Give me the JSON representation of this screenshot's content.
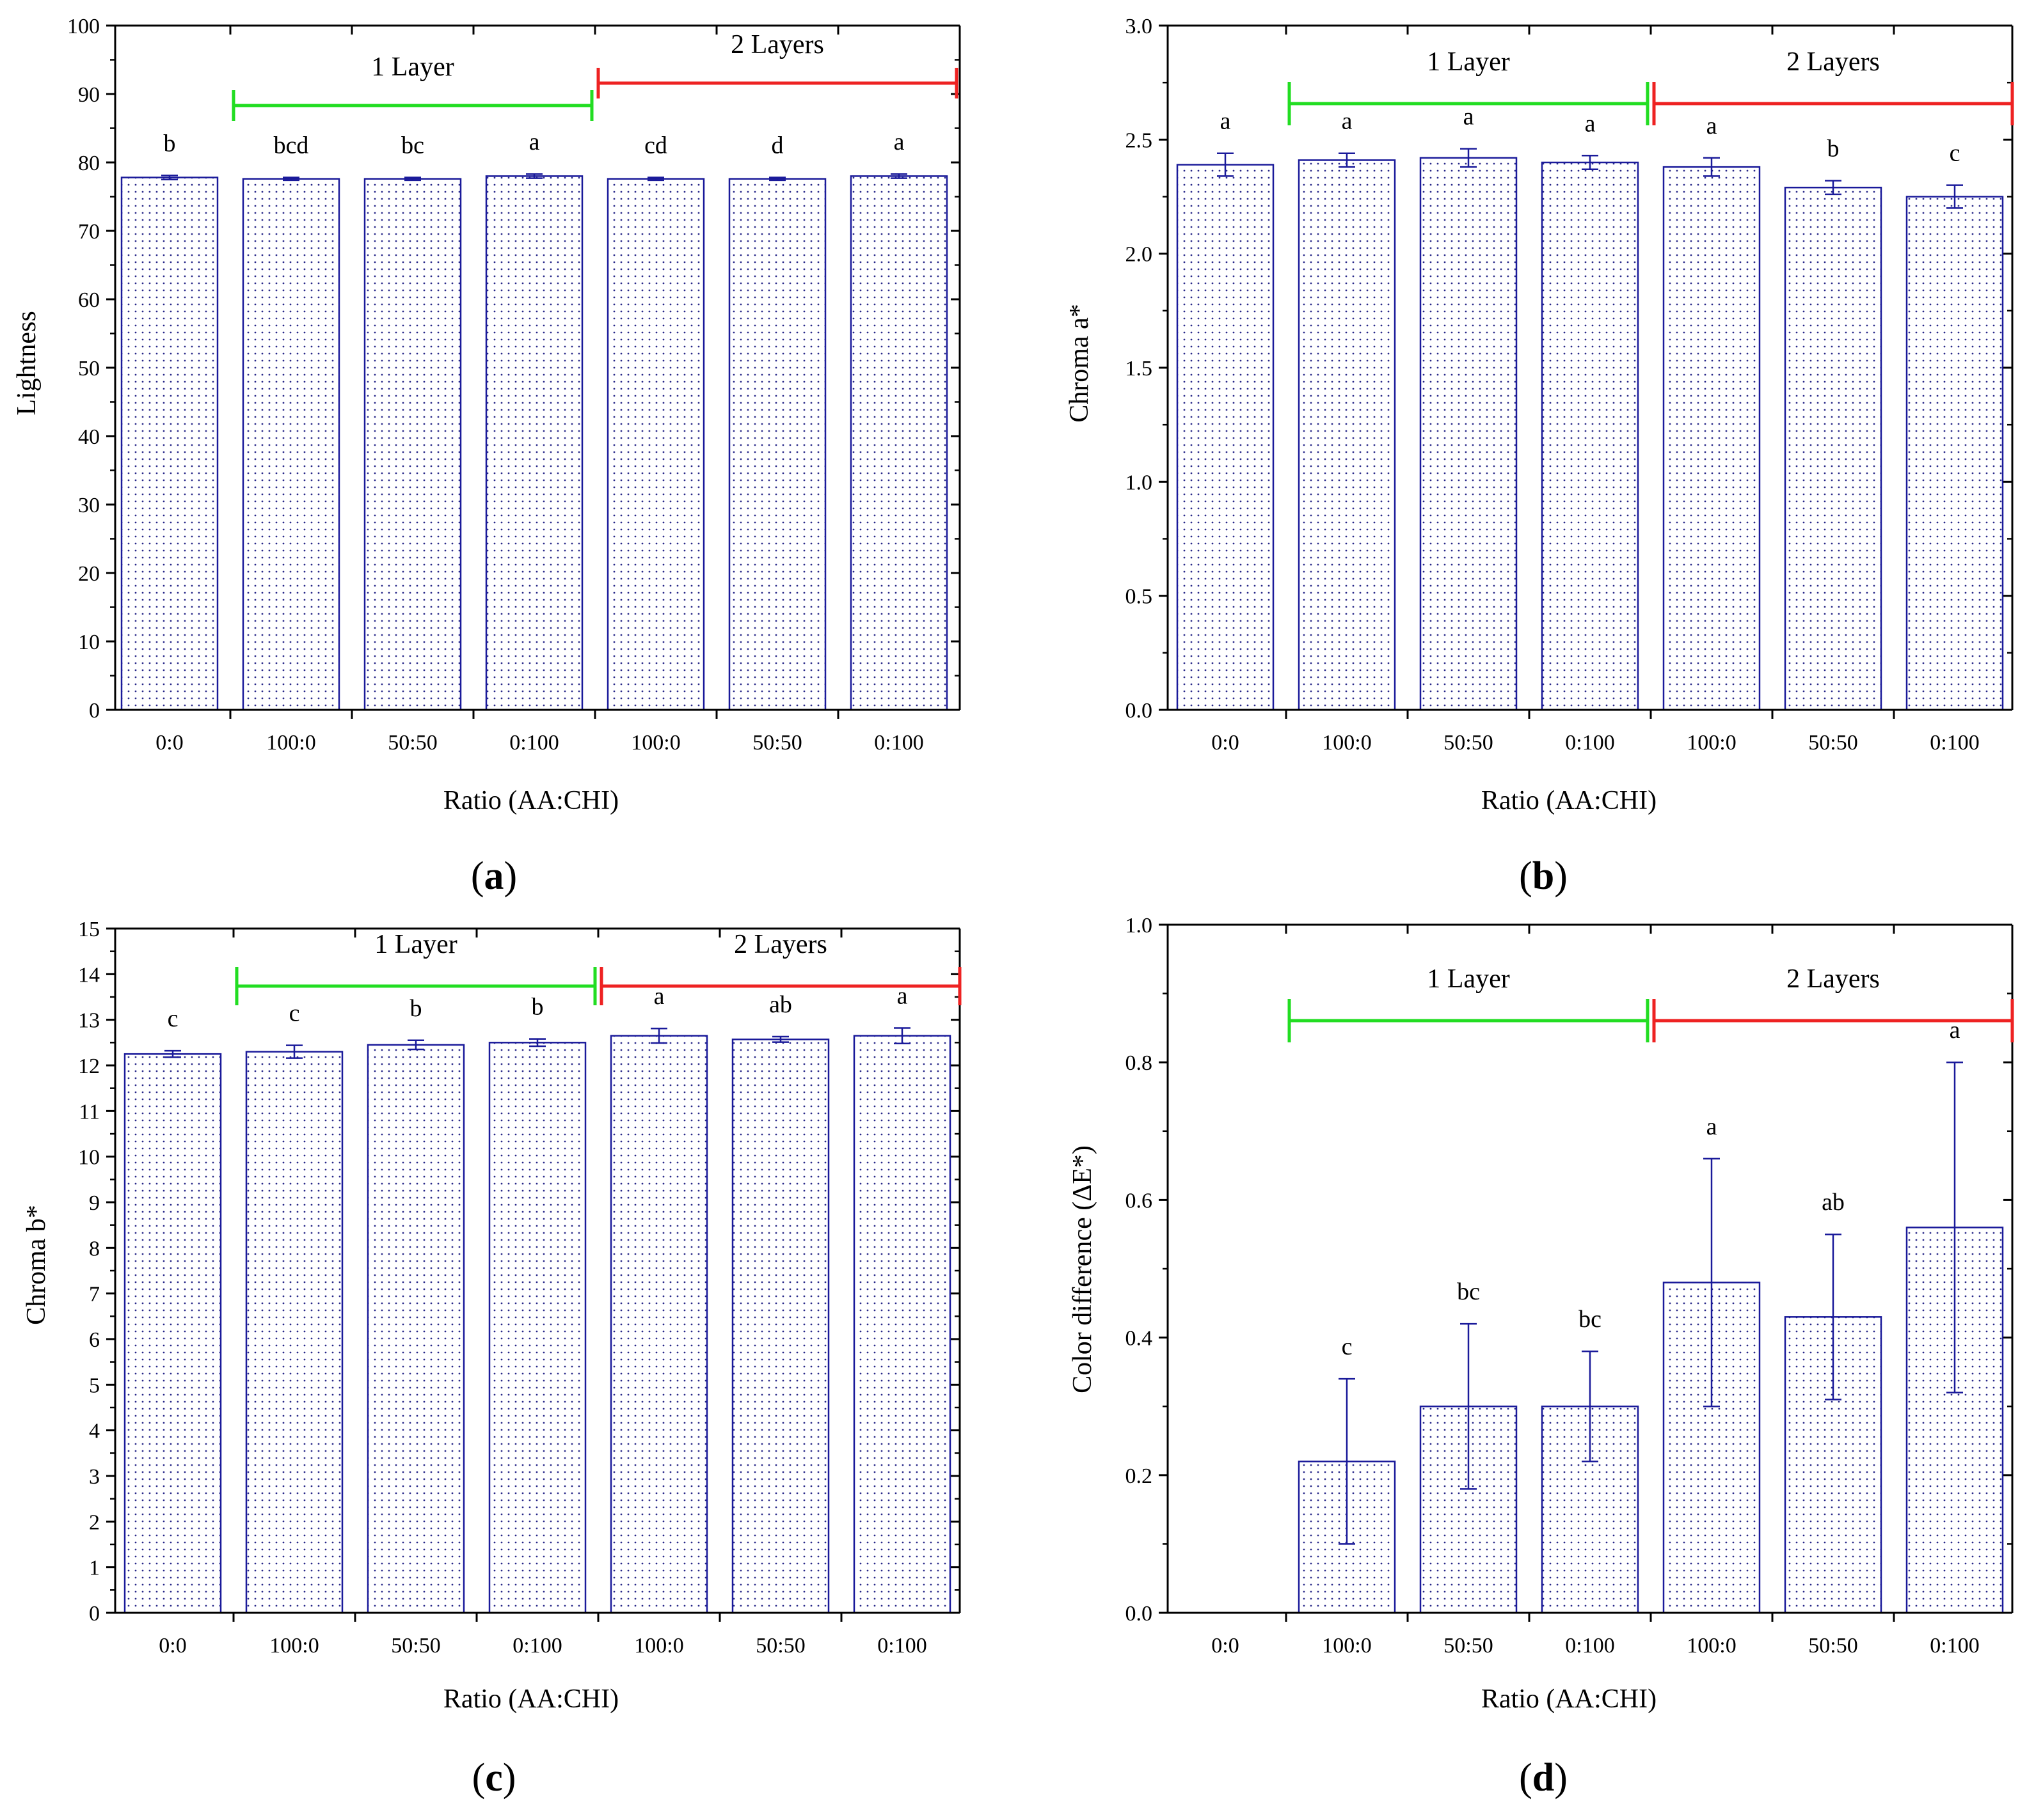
{
  "chart_data": [
    {
      "type": "bar",
      "panel": "a",
      "ylabel": "Lightness",
      "xlabel": "Ratio (AA:CHI)",
      "categories": [
        "0:0",
        "100:0",
        "50:50",
        "0:100",
        "100:0",
        "50:50",
        "0:100"
      ],
      "values": [
        77.8,
        77.6,
        77.6,
        78.0,
        77.6,
        77.6,
        78.0
      ],
      "errors": [
        0.3,
        0.2,
        0.2,
        0.3,
        0.2,
        0.2,
        0.3
      ],
      "letters": [
        "b",
        "bcd",
        "bc",
        "a",
        "cd",
        "d",
        "a"
      ],
      "ylim": [
        0,
        100
      ],
      "yticks": [
        0,
        10,
        20,
        30,
        40,
        50,
        60,
        70,
        80,
        90,
        100
      ],
      "yticklabels": [
        "0",
        "10",
        "20",
        "30",
        "40",
        "50",
        "60",
        "70",
        "80",
        "90",
        "100"
      ],
      "groups": [
        {
          "label": "1 Layer",
          "from": 1,
          "to": 3,
          "color": "#22dd22"
        },
        {
          "label": "2 Layers",
          "from": 4,
          "to": 6,
          "color": "#ee2222"
        }
      ]
    },
    {
      "type": "bar",
      "panel": "b",
      "ylabel": "Chroma a*",
      "xlabel": "Ratio (AA:CHI)",
      "categories": [
        "0:0",
        "100:0",
        "50:50",
        "0:100",
        "100:0",
        "50:50",
        "0:100"
      ],
      "values": [
        2.39,
        2.41,
        2.42,
        2.4,
        2.38,
        2.29,
        2.25
      ],
      "errors": [
        0.05,
        0.03,
        0.04,
        0.03,
        0.04,
        0.03,
        0.05
      ],
      "letters": [
        "a",
        "a",
        "a",
        "a",
        "a",
        "b",
        "c"
      ],
      "ylim": [
        0,
        3.0
      ],
      "yticks": [
        0,
        0.5,
        1.0,
        1.5,
        2.0,
        2.5,
        3.0
      ],
      "yticklabels": [
        "0.0",
        "0.5",
        "1.0",
        "1.5",
        "2.0",
        "2.5",
        "3.0"
      ],
      "groups": [
        {
          "label": "1 Layer",
          "from": 1,
          "to": 3,
          "color": "#22dd22"
        },
        {
          "label": "2 Layers",
          "from": 4,
          "to": 6,
          "color": "#ee2222"
        }
      ]
    },
    {
      "type": "bar",
      "panel": "c",
      "ylabel": "Chroma b*",
      "xlabel": "Ratio (AA:CHI)",
      "categories": [
        "0:0",
        "100:0",
        "50:50",
        "0:100",
        "100:0",
        "50:50",
        "0:100"
      ],
      "values": [
        12.25,
        12.3,
        12.45,
        12.5,
        12.65,
        12.57,
        12.65
      ],
      "errors": [
        0.07,
        0.14,
        0.1,
        0.08,
        0.16,
        0.06,
        0.17
      ],
      "letters": [
        "c",
        "c",
        "b",
        "b",
        "a",
        "ab",
        "a"
      ],
      "ylim": [
        0,
        15
      ],
      "yticks": [
        0,
        1,
        2,
        3,
        4,
        5,
        6,
        7,
        8,
        9,
        10,
        11,
        12,
        13,
        14,
        15
      ],
      "yticklabels": [
        "0",
        "1",
        "2",
        "3",
        "4",
        "5",
        "6",
        "7",
        "8",
        "9",
        "10",
        "11",
        "12",
        "13",
        "14",
        "15"
      ],
      "groups": [
        {
          "label": "1 Layer",
          "from": 1,
          "to": 3,
          "color": "#22dd22"
        },
        {
          "label": "2 Layers",
          "from": 4,
          "to": 6,
          "color": "#ee2222"
        }
      ]
    },
    {
      "type": "bar",
      "panel": "d",
      "ylabel": "Color difference (ΔE*)",
      "xlabel": "Ratio (AA:CHI)",
      "categories": [
        "0:0",
        "100:0",
        "50:50",
        "0:100",
        "100:0",
        "50:50",
        "0:100"
      ],
      "values": [
        0,
        0.22,
        0.3,
        0.3,
        0.48,
        0.43,
        0.56
      ],
      "errors": [
        0,
        0.12,
        0.12,
        0.08,
        0.18,
        0.12,
        0.24
      ],
      "letters": [
        "",
        "c",
        "bc",
        "bc",
        "a",
        "ab",
        "a"
      ],
      "ylim": [
        0,
        1.0
      ],
      "yticks": [
        0,
        0.2,
        0.4,
        0.6,
        0.8,
        1.0
      ],
      "yticklabels": [
        "0.0",
        "0.2",
        "0.4",
        "0.6",
        "0.8",
        "1.0"
      ],
      "groups": [
        {
          "label": "1 Layer",
          "from": 1,
          "to": 3,
          "color": "#22dd22"
        },
        {
          "label": "2 Layers",
          "from": 4,
          "to": 6,
          "color": "#ee2222"
        }
      ]
    }
  ],
  "colors": {
    "bar_outline": "#1a1a9a",
    "dots": "#2a2a8a",
    "axis": "#000000"
  }
}
